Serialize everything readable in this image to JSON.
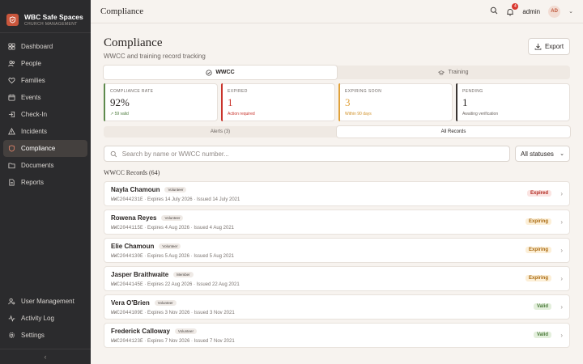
{
  "brand": {
    "name": "WBC Safe Spaces",
    "subtitle": "CHURCH MANAGEMENT"
  },
  "nav": [
    {
      "label": "Dashboard",
      "icon": "dashboard-icon"
    },
    {
      "label": "People",
      "icon": "people-icon"
    },
    {
      "label": "Families",
      "icon": "heart-icon"
    },
    {
      "label": "Events",
      "icon": "calendar-icon"
    },
    {
      "label": "Check-In",
      "icon": "check-in-icon"
    },
    {
      "label": "Incidents",
      "icon": "warning-icon"
    },
    {
      "label": "Compliance",
      "icon": "shield-icon",
      "active": true
    },
    {
      "label": "Documents",
      "icon": "folder-icon"
    },
    {
      "label": "Reports",
      "icon": "report-icon"
    }
  ],
  "nav_bottom": [
    {
      "label": "User Management",
      "icon": "user-management-icon"
    },
    {
      "label": "Activity Log",
      "icon": "activity-icon"
    },
    {
      "label": "Settings",
      "icon": "gear-icon"
    }
  ],
  "topbar": {
    "title": "Compliance",
    "notification_count": "4",
    "user_name": "admin",
    "user_initials": "AD"
  },
  "page": {
    "title": "Compliance",
    "subtitle": "WWCC and training record tracking",
    "export_label": "Export"
  },
  "tabs": [
    {
      "label": "WWCC"
    },
    {
      "label": "Training"
    }
  ],
  "stats": [
    {
      "label": "COMPLIANCE RATE",
      "value": "92%",
      "note": "59 valid"
    },
    {
      "label": "EXPIRED",
      "value": "1",
      "note": "Action required"
    },
    {
      "label": "EXPIRING SOON",
      "value": "3",
      "note": "Within 90 days"
    },
    {
      "label": "PENDING",
      "value": "1",
      "note": "Awaiting verification"
    }
  ],
  "subtabs": [
    {
      "label": "Alerts (3)"
    },
    {
      "label": "All Records"
    }
  ],
  "search": {
    "placeholder": "Search by name or WWCC number..."
  },
  "status_filter": {
    "selected": "All statuses"
  },
  "records_title": "WWCC Records (64)",
  "records": [
    {
      "name": "Nayla Chamoun",
      "role": "Volunteer",
      "number": "WWC2044231E",
      "details": "· Expires 14 July 2026 · Issued 14 July 2021",
      "status": "Expired"
    },
    {
      "name": "Rowena Reyes",
      "role": "Volunteer",
      "number": "WWC2044115E",
      "details": "· Expires 4 Aug 2026 · Issued 4 Aug 2021",
      "status": "Expiring"
    },
    {
      "name": "Elie Chamoun",
      "role": "Volunteer",
      "number": "WWC2044130E",
      "details": "· Expires 5 Aug 2026 · Issued 5 Aug 2021",
      "status": "Expiring"
    },
    {
      "name": "Jasper Braithwaite",
      "role": "Member",
      "number": "WWC2044145E",
      "details": "· Expires 22 Aug 2026 · Issued 22 Aug 2021",
      "status": "Expiring"
    },
    {
      "name": "Vera O'Brien",
      "role": "Volunteer",
      "number": "WWC2044109E",
      "details": "· Expires 3 Nov 2026 · Issued 3 Nov 2021",
      "status": "Valid"
    },
    {
      "name": "Frederick Calloway",
      "role": "Volunteer",
      "number": "WWC2044123E",
      "details": "· Expires 7 Nov 2026 · Issued 7 Nov 2021",
      "status": "Valid"
    }
  ],
  "colors": {
    "accent": "#c9563c",
    "sidebar": "#2b2b2d",
    "expired": "#c9332b",
    "expiring": "#e0a13a",
    "valid": "#5e8a4d"
  }
}
